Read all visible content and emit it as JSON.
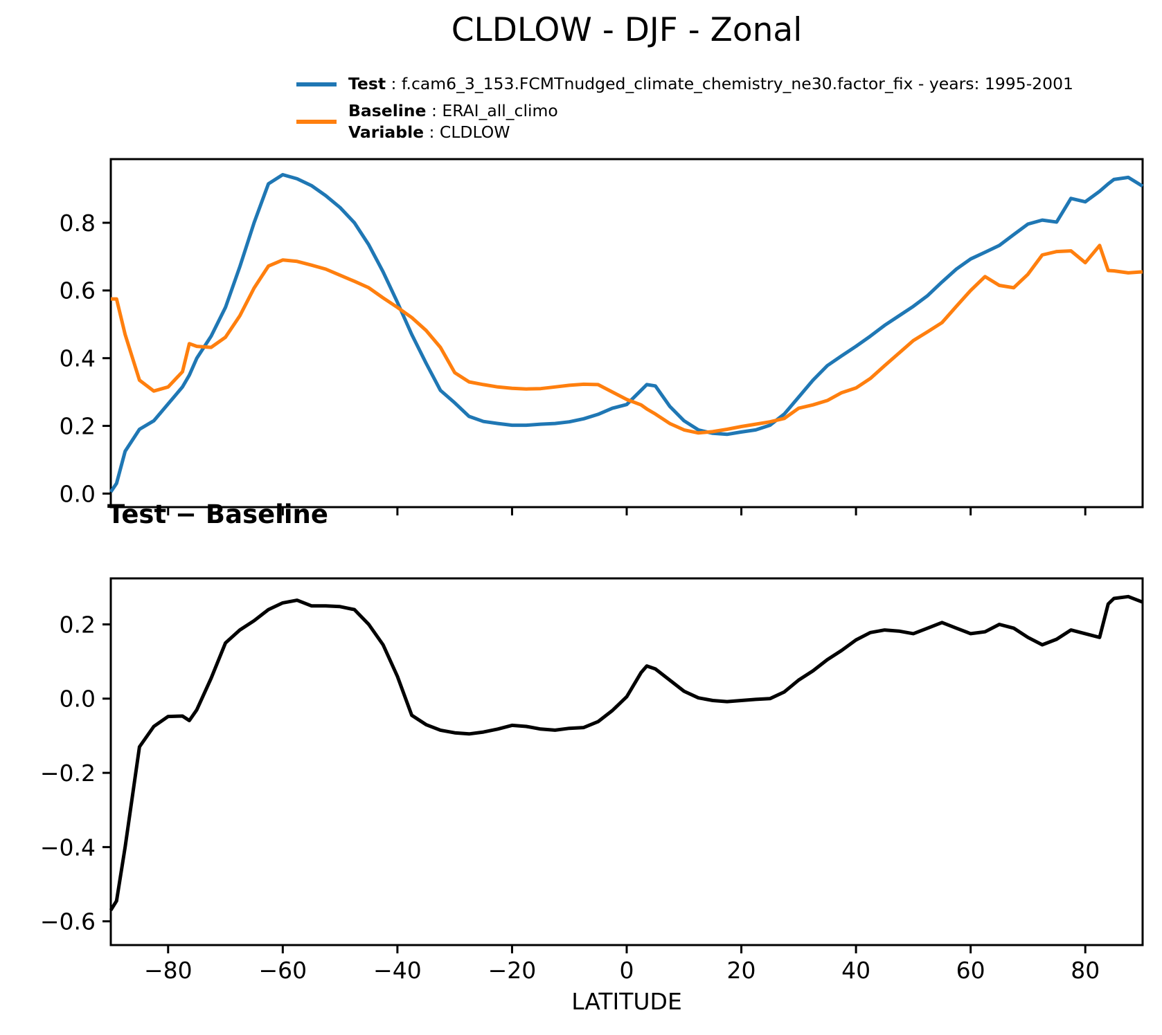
{
  "title": "CLDLOW - DJF - Zonal",
  "panel2_title": "Test − Baseline",
  "xlabel": "LATITUDE",
  "colors": {
    "test": "#1f77b4",
    "baseline": "#ff7f0e",
    "difference": "#000000",
    "axis": "#000000"
  },
  "legend": {
    "items": [
      {
        "label": "Test",
        "value": " : f.cam6_3_153.FCMTnudged_climate_chemistry_ne30.factor_fix - years: 1995-2001",
        "color": "#1f77b4"
      },
      {
        "label": "Baseline",
        "value": " : ERAI_all_climo",
        "color": "#ff7f0e"
      },
      {
        "label": "Variable",
        "value": " : CLDLOW",
        "color": null
      }
    ]
  },
  "chart_data": [
    {
      "type": "line",
      "title": "CLDLOW - DJF - Zonal",
      "xlabel": "",
      "ylabel": "",
      "xlim": [
        -90,
        90
      ],
      "ylim": [
        -0.04,
        0.988
      ],
      "grid": false,
      "legend_position": "top-left-above-axes",
      "x": [
        -90,
        -89,
        -87.5,
        -85,
        -82.5,
        -80,
        -77.5,
        -76.3,
        -75,
        -72.5,
        -70,
        -67.5,
        -65,
        -62.5,
        -60,
        -57.5,
        -55,
        -52.5,
        -50,
        -47.5,
        -45,
        -42.5,
        -40,
        -37.5,
        -35,
        -32.5,
        -30,
        -27.5,
        -25,
        -22.5,
        -20,
        -17.5,
        -15,
        -12.5,
        -10,
        -7.5,
        -5,
        -2.5,
        0,
        2.5,
        3.5,
        5,
        7.5,
        10,
        12.5,
        15,
        17.5,
        20,
        22.5,
        25,
        27.5,
        30,
        32.5,
        35,
        37.5,
        40,
        42.5,
        45,
        47.5,
        50,
        52.5,
        55,
        57.5,
        60,
        62.5,
        65,
        67.5,
        70,
        72.5,
        75,
        77.5,
        80,
        82.5,
        84,
        85,
        87.5,
        90
      ],
      "series": [
        {
          "name": "Test",
          "color_key": "test",
          "values": [
            0.005,
            0.03,
            0.125,
            0.19,
            0.215,
            0.265,
            0.315,
            0.35,
            0.4,
            0.465,
            0.55,
            0.67,
            0.8,
            0.915,
            0.942,
            0.93,
            0.91,
            0.88,
            0.845,
            0.8,
            0.735,
            0.655,
            0.565,
            0.47,
            0.385,
            0.305,
            0.268,
            0.228,
            0.213,
            0.207,
            0.202,
            0.202,
            0.205,
            0.207,
            0.212,
            0.221,
            0.234,
            0.252,
            0.263,
            0.305,
            0.322,
            0.318,
            0.258,
            0.215,
            0.188,
            0.178,
            0.175,
            0.182,
            0.188,
            0.202,
            0.235,
            0.285,
            0.335,
            0.378,
            0.407,
            0.435,
            0.465,
            0.497,
            0.525,
            0.553,
            0.585,
            0.625,
            0.663,
            0.693,
            0.713,
            0.733,
            0.765,
            0.796,
            0.808,
            0.802,
            0.872,
            0.862,
            0.893,
            0.915,
            0.928,
            0.934,
            0.908
          ]
        },
        {
          "name": "Baseline",
          "color_key": "baseline",
          "values": [
            0.575,
            0.575,
            0.47,
            0.335,
            0.303,
            0.315,
            0.36,
            0.443,
            0.435,
            0.432,
            0.462,
            0.525,
            0.607,
            0.672,
            0.69,
            0.686,
            0.675,
            0.663,
            0.645,
            0.627,
            0.608,
            0.578,
            0.55,
            0.52,
            0.482,
            0.432,
            0.357,
            0.33,
            0.322,
            0.315,
            0.311,
            0.309,
            0.31,
            0.315,
            0.32,
            0.323,
            0.322,
            0.3,
            0.278,
            0.262,
            0.25,
            0.235,
            0.207,
            0.188,
            0.179,
            0.183,
            0.19,
            0.198,
            0.205,
            0.212,
            0.222,
            0.252,
            0.262,
            0.275,
            0.298,
            0.312,
            0.34,
            0.378,
            0.415,
            0.452,
            0.478,
            0.505,
            0.553,
            0.6,
            0.641,
            0.615,
            0.608,
            0.648,
            0.705,
            0.715,
            0.717,
            0.682,
            0.733,
            0.659,
            0.658,
            0.652,
            0.655
          ]
        }
      ],
      "yticks": {
        "values": [
          0.0,
          0.2,
          0.4,
          0.6,
          0.8
        ],
        "labels": [
          "0.0",
          "0.2",
          "0.4",
          "0.6",
          "0.8"
        ]
      },
      "xticks": {
        "values": [
          -80,
          -60,
          -40,
          -20,
          0,
          20,
          40,
          60,
          80
        ],
        "labels": []
      }
    },
    {
      "type": "line",
      "title": "Test − Baseline",
      "xlabel": "LATITUDE",
      "ylabel": "",
      "xlim": [
        -90,
        90
      ],
      "ylim": [
        -0.664,
        0.324
      ],
      "grid": false,
      "x": [
        -90,
        -89,
        -87.5,
        -85,
        -82.5,
        -80,
        -77.5,
        -76.3,
        -75,
        -72.5,
        -70,
        -67.5,
        -65,
        -62.5,
        -60,
        -57.5,
        -55,
        -52.5,
        -50,
        -47.5,
        -45,
        -42.5,
        -40,
        -37.5,
        -35,
        -32.5,
        -30,
        -27.5,
        -25,
        -22.5,
        -20,
        -17.5,
        -15,
        -12.5,
        -10,
        -7.5,
        -5,
        -2.5,
        0,
        2.5,
        3.5,
        5,
        7.5,
        10,
        12.5,
        15,
        17.5,
        20,
        22.5,
        25,
        27.5,
        30,
        32.5,
        35,
        37.5,
        40,
        42.5,
        45,
        47.5,
        50,
        52.5,
        55,
        57.5,
        60,
        62.5,
        65,
        67.5,
        70,
        72.5,
        75,
        77.5,
        80,
        82.5,
        84,
        85,
        87.5,
        90
      ],
      "series": [
        {
          "name": "Test − Baseline",
          "color_key": "difference",
          "values": [
            -0.57,
            -0.545,
            -0.4,
            -0.13,
            -0.075,
            -0.048,
            -0.047,
            -0.059,
            -0.03,
            0.055,
            0.15,
            0.185,
            0.21,
            0.24,
            0.258,
            0.265,
            0.25,
            0.25,
            0.248,
            0.24,
            0.2,
            0.145,
            0.06,
            -0.045,
            -0.07,
            -0.085,
            -0.092,
            -0.095,
            -0.09,
            -0.082,
            -0.072,
            -0.075,
            -0.082,
            -0.085,
            -0.08,
            -0.078,
            -0.062,
            -0.032,
            0.005,
            0.07,
            0.088,
            0.08,
            0.05,
            0.02,
            0.002,
            -0.005,
            -0.008,
            -0.005,
            -0.002,
            0.0,
            0.018,
            0.05,
            0.075,
            0.105,
            0.13,
            0.158,
            0.178,
            0.185,
            0.182,
            0.175,
            0.19,
            0.205,
            0.19,
            0.175,
            0.18,
            0.2,
            0.19,
            0.165,
            0.145,
            0.16,
            0.185,
            0.175,
            0.165,
            0.255,
            0.27,
            0.275,
            0.26
          ]
        }
      ],
      "yticks": {
        "values": [
          0.2,
          0.0,
          -0.2,
          -0.4,
          -0.6
        ],
        "labels": [
          "0.2",
          "0.0",
          "−0.2",
          "−0.4",
          "−0.6"
        ]
      },
      "xticks": {
        "values": [
          -80,
          -60,
          -40,
          -20,
          0,
          20,
          40,
          60,
          80
        ],
        "labels": [
          "−80",
          "−60",
          "−40",
          "−20",
          "0",
          "20",
          "40",
          "60",
          "80"
        ]
      }
    }
  ]
}
